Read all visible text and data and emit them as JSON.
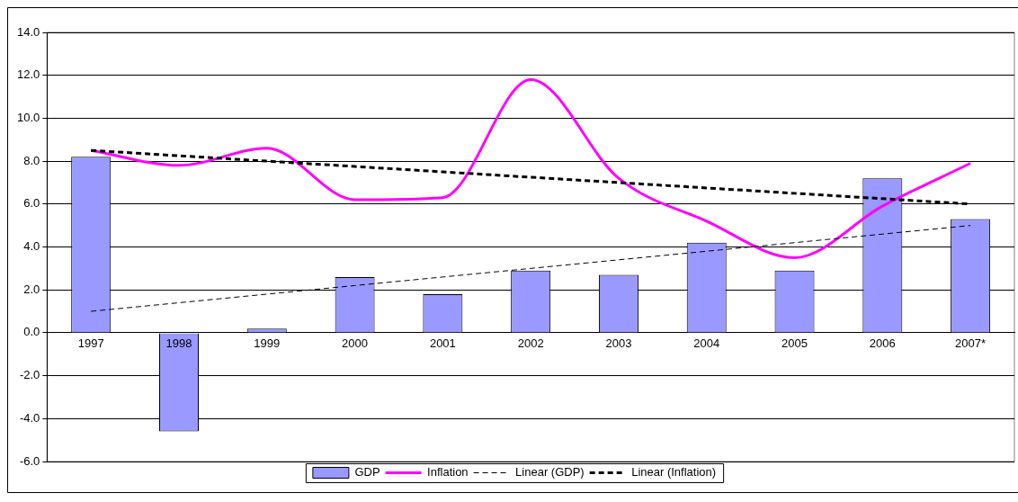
{
  "chart_data": {
    "type": "bar",
    "categories": [
      "1997",
      "1998",
      "1999",
      "2000",
      "2001",
      "2002",
      "2003",
      "2004",
      "2005",
      "2006",
      "2007*"
    ],
    "series": [
      {
        "name": "GDP",
        "color": "#9999ff",
        "values": [
          8.2,
          -4.6,
          0.2,
          2.6,
          1.8,
          2.9,
          2.7,
          4.2,
          2.9,
          7.2,
          5.3
        ]
      },
      {
        "name": "Inflation",
        "type": "line",
        "color": "#ff00ff",
        "line_style": "solid",
        "values": [
          8.5,
          7.8,
          8.6,
          6.2,
          6.3,
          11.8,
          7.2,
          5.2,
          3.5,
          5.9,
          7.9
        ]
      },
      {
        "name": "Linear (GDP)",
        "type": "line",
        "color": "#000000",
        "line_style": "dashed",
        "values": [
          1.0,
          1.4,
          1.8,
          2.2,
          2.6,
          3.0,
          3.4,
          3.8,
          4.2,
          4.6,
          5.0
        ]
      },
      {
        "name": "Linear (Inflation)",
        "type": "line",
        "color": "#000000",
        "line_style": "dashed",
        "values": [
          8.5,
          8.25,
          8.0,
          7.75,
          7.5,
          7.25,
          7.0,
          6.75,
          6.5,
          6.25,
          6.0
        ]
      }
    ],
    "ylim": [
      -6,
      14
    ],
    "yticks": [
      {
        "value": -6,
        "label": "-6.0"
      },
      {
        "value": -4,
        "label": "-4.0"
      },
      {
        "value": -2,
        "label": "-2.0"
      },
      {
        "value": 0,
        "label": "0.0"
      },
      {
        "value": 2,
        "label": "2.0"
      },
      {
        "value": 4,
        "label": "4.0"
      },
      {
        "value": 6,
        "label": "6.0"
      },
      {
        "value": 8,
        "label": "8.0"
      },
      {
        "value": 10,
        "label": "10.0"
      },
      {
        "value": 12,
        "label": "12.0"
      },
      {
        "value": 14,
        "label": "14.0"
      }
    ],
    "grid": "y",
    "legend": "bottom",
    "marker": "none"
  }
}
